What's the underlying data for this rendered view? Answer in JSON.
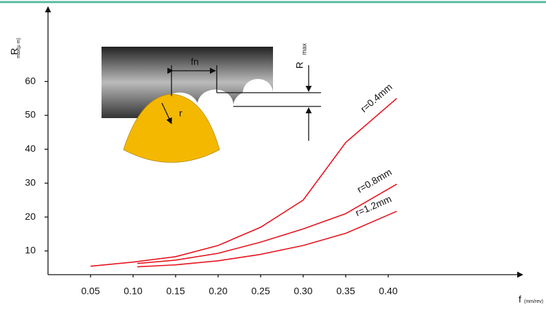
{
  "chart_data": {
    "type": "line",
    "y_label": "R",
    "y_label_sub": "max(μ m)",
    "x_label": "f",
    "x_label_sub": "(mm/rev)",
    "annotations": {
      "feed": "fn",
      "radius": "r",
      "rmax": "R",
      "rmax_sub": "max"
    },
    "series": [
      {
        "name": "r=0.4mm",
        "color": "#e8101a",
        "x": [
          0.05,
          0.1,
          0.15,
          0.2,
          0.25,
          0.3,
          0.35,
          0.41
        ],
        "values": [
          5.5,
          6.7,
          8.3,
          11.6,
          17,
          25,
          42,
          55
        ]
      },
      {
        "name": "r=0.8mm",
        "color": "#e8101a",
        "x": [
          0.105,
          0.15,
          0.2,
          0.25,
          0.3,
          0.35,
          0.41
        ],
        "values": [
          6.3,
          7.3,
          9.3,
          12.6,
          16.5,
          21,
          29.7
        ]
      },
      {
        "name": "r=1.2mm",
        "color": "#e8101a",
        "x": [
          0.105,
          0.15,
          0.2,
          0.25,
          0.3,
          0.35,
          0.41
        ],
        "values": [
          5.3,
          5.9,
          7.1,
          9,
          11.6,
          15.2,
          21.7
        ]
      }
    ],
    "xlim": [
      0,
      0.55
    ],
    "ylim": [
      3,
      82
    ],
    "xticks": [
      0.05,
      {
        "value": 0.1,
        "label": "0.10"
      },
      0.15,
      {
        "value": 0.2,
        "label": "0.20"
      },
      0.25,
      {
        "value": 0.3,
        "label": "0.30"
      },
      0.35,
      {
        "value": 0.4,
        "label": "0.40"
      }
    ],
    "yticks": [
      10,
      20,
      30,
      40,
      50,
      60
    ],
    "grid": false
  }
}
